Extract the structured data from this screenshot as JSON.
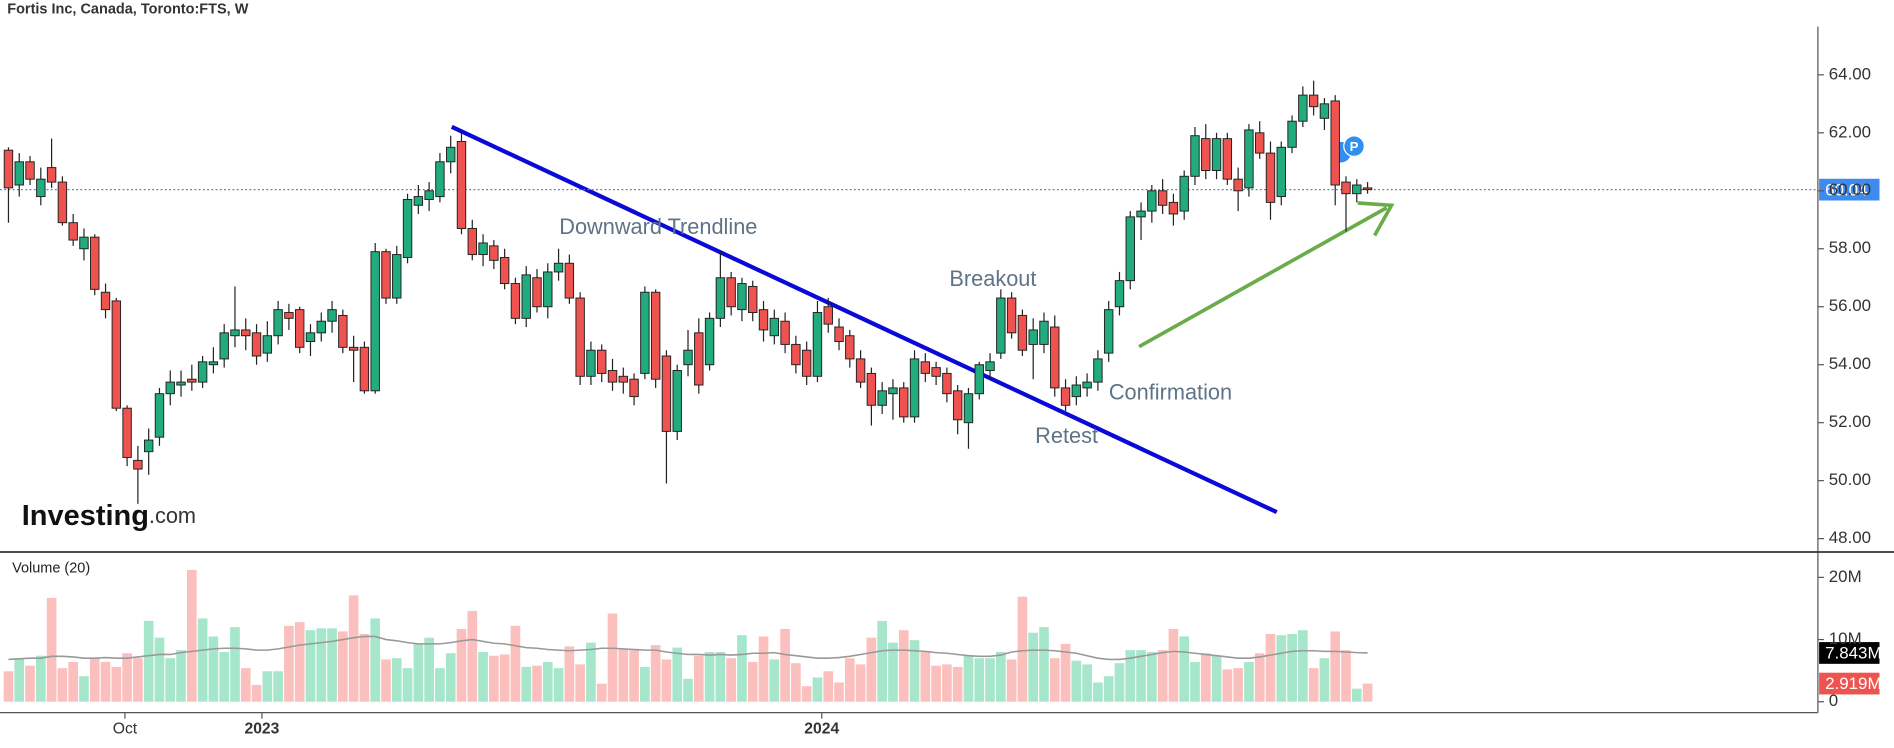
{
  "chart_data": {
    "type": "candlestick",
    "title": "Fortis Inc, Canada, Toronto:FTS, W",
    "ylim": [
      47.54,
      65.54
    ],
    "yticks": [
      {
        "value": 48,
        "label": "48.00"
      },
      {
        "value": 50,
        "label": "50.00"
      },
      {
        "value": 52,
        "label": "52.00"
      },
      {
        "value": 54,
        "label": "54.00"
      },
      {
        "value": 56,
        "label": "56.00"
      },
      {
        "value": 58,
        "label": "58.00"
      },
      {
        "value": 60,
        "label": "60.00"
      },
      {
        "value": 62,
        "label": "62.00"
      },
      {
        "value": 64,
        "label": "64.00"
      }
    ],
    "xticks": [
      {
        "value": 10.8,
        "label": "Oct"
      },
      {
        "value": 23.5,
        "label": "2023"
      },
      {
        "value": 75.4,
        "label": "2024"
      }
    ],
    "up_color": "#22ab7c",
    "down_color": "#ef5350",
    "ohlc": [
      [
        61.4,
        61.5,
        58.9,
        60.1
      ],
      [
        60.2,
        61.3,
        59.8,
        61.0
      ],
      [
        61.0,
        61.2,
        60.2,
        60.4
      ],
      [
        59.8,
        60.8,
        59.5,
        60.4
      ],
      [
        60.8,
        61.8,
        60.1,
        60.3
      ],
      [
        60.3,
        60.5,
        58.8,
        58.9
      ],
      [
        58.9,
        59.2,
        58.1,
        58.3
      ],
      [
        58.0,
        58.7,
        57.6,
        58.4
      ],
      [
        58.4,
        58.5,
        56.4,
        56.6
      ],
      [
        56.5,
        56.8,
        55.6,
        55.9
      ],
      [
        56.2,
        56.3,
        52.4,
        52.5
      ],
      [
        52.5,
        52.6,
        50.5,
        50.8
      ],
      [
        50.7,
        51.2,
        49.2,
        50.4
      ],
      [
        51.0,
        51.8,
        50.2,
        51.4
      ],
      [
        51.5,
        53.2,
        51.2,
        53.0
      ],
      [
        53.0,
        53.8,
        52.6,
        53.4
      ],
      [
        53.3,
        53.8,
        52.9,
        53.4
      ],
      [
        53.5,
        54.0,
        53.1,
        53.4
      ],
      [
        53.4,
        54.3,
        53.2,
        54.1
      ],
      [
        54.0,
        54.6,
        53.7,
        54.1
      ],
      [
        54.2,
        55.4,
        53.9,
        55.1
      ],
      [
        55.0,
        56.7,
        54.6,
        55.2
      ],
      [
        55.2,
        55.6,
        54.5,
        55.0
      ],
      [
        55.1,
        55.4,
        54.0,
        54.3
      ],
      [
        54.4,
        55.5,
        54.1,
        55.0
      ],
      [
        55.0,
        56.2,
        54.7,
        55.9
      ],
      [
        55.8,
        56.1,
        55.2,
        55.6
      ],
      [
        55.9,
        56.0,
        54.4,
        54.6
      ],
      [
        54.8,
        55.4,
        54.3,
        55.1
      ],
      [
        55.1,
        55.8,
        54.8,
        55.5
      ],
      [
        55.5,
        56.2,
        55.1,
        55.9
      ],
      [
        55.7,
        55.9,
        54.4,
        54.6
      ],
      [
        54.6,
        55.0,
        53.4,
        54.5
      ],
      [
        54.6,
        54.8,
        53.0,
        53.1
      ],
      [
        53.1,
        58.2,
        53.0,
        57.9
      ],
      [
        57.9,
        58.0,
        56.1,
        56.3
      ],
      [
        56.3,
        58.1,
        56.1,
        57.8
      ],
      [
        57.7,
        59.9,
        57.5,
        59.7
      ],
      [
        59.5,
        60.2,
        59.2,
        59.8
      ],
      [
        59.7,
        60.3,
        59.3,
        60.0
      ],
      [
        59.8,
        61.3,
        59.6,
        61.0
      ],
      [
        61.0,
        61.9,
        60.6,
        61.5
      ],
      [
        61.7,
        62.1,
        58.5,
        58.7
      ],
      [
        58.7,
        59.0,
        57.6,
        57.8
      ],
      [
        57.8,
        58.5,
        57.4,
        58.2
      ],
      [
        58.1,
        58.3,
        57.3,
        57.6
      ],
      [
        57.7,
        58.0,
        56.6,
        56.8
      ],
      [
        56.8,
        57.0,
        55.4,
        55.6
      ],
      [
        55.6,
        57.4,
        55.3,
        57.1
      ],
      [
        57.0,
        57.3,
        55.8,
        56.0
      ],
      [
        56.0,
        57.5,
        55.6,
        57.2
      ],
      [
        57.2,
        58.0,
        56.9,
        57.5
      ],
      [
        57.5,
        57.8,
        56.1,
        56.3
      ],
      [
        56.3,
        56.5,
        53.3,
        53.6
      ],
      [
        53.6,
        54.8,
        53.3,
        54.5
      ],
      [
        54.5,
        54.7,
        53.4,
        53.7
      ],
      [
        53.8,
        54.2,
        53.1,
        53.4
      ],
      [
        53.6,
        53.9,
        53.0,
        53.4
      ],
      [
        53.5,
        53.7,
        52.6,
        52.9
      ],
      [
        53.7,
        56.7,
        53.5,
        56.5
      ],
      [
        56.5,
        56.6,
        53.2,
        53.5
      ],
      [
        54.3,
        54.5,
        49.9,
        51.7
      ],
      [
        51.7,
        54.0,
        51.4,
        53.8
      ],
      [
        54.0,
        55.2,
        53.6,
        54.5
      ],
      [
        55.1,
        55.6,
        53.0,
        53.3
      ],
      [
        54.0,
        55.8,
        53.8,
        55.6
      ],
      [
        55.6,
        57.9,
        55.3,
        57.0
      ],
      [
        57.0,
        57.2,
        55.7,
        56.0
      ],
      [
        55.9,
        57.0,
        55.5,
        56.8
      ],
      [
        56.7,
        56.9,
        55.5,
        55.8
      ],
      [
        55.9,
        56.2,
        54.8,
        55.2
      ],
      [
        55.0,
        55.9,
        54.7,
        55.6
      ],
      [
        55.5,
        55.8,
        54.4,
        54.7
      ],
      [
        54.7,
        55.0,
        53.7,
        54.0
      ],
      [
        54.5,
        54.8,
        53.3,
        53.6
      ],
      [
        53.6,
        56.2,
        53.4,
        55.8
      ],
      [
        56.0,
        56.3,
        55.1,
        55.4
      ],
      [
        55.3,
        55.6,
        54.5,
        54.8
      ],
      [
        55.0,
        55.2,
        53.9,
        54.2
      ],
      [
        54.2,
        54.5,
        53.2,
        53.4
      ],
      [
        53.7,
        53.9,
        51.9,
        52.6
      ],
      [
        52.6,
        53.4,
        52.3,
        53.1
      ],
      [
        53.0,
        53.5,
        52.1,
        53.2
      ],
      [
        53.2,
        53.4,
        52.0,
        52.2
      ],
      [
        52.2,
        54.5,
        52.0,
        54.2
      ],
      [
        54.1,
        54.4,
        53.4,
        53.7
      ],
      [
        53.9,
        54.1,
        53.3,
        53.6
      ],
      [
        53.7,
        53.9,
        52.7,
        53.0
      ],
      [
        53.1,
        53.3,
        51.6,
        52.1
      ],
      [
        52.0,
        53.2,
        51.1,
        53.0
      ],
      [
        53.0,
        54.1,
        52.8,
        54.0
      ],
      [
        53.8,
        54.4,
        53.5,
        54.1
      ],
      [
        54.4,
        56.6,
        54.2,
        56.3
      ],
      [
        56.3,
        56.5,
        54.9,
        55.1
      ],
      [
        55.7,
        55.9,
        54.3,
        54.5
      ],
      [
        54.7,
        55.6,
        53.5,
        55.2
      ],
      [
        54.7,
        55.8,
        54.4,
        55.5
      ],
      [
        55.3,
        55.7,
        52.9,
        53.2
      ],
      [
        53.2,
        53.5,
        52.4,
        52.6
      ],
      [
        52.9,
        53.6,
        52.6,
        53.3
      ],
      [
        53.2,
        53.7,
        52.9,
        53.4
      ],
      [
        53.4,
        54.5,
        53.1,
        54.2
      ],
      [
        54.4,
        56.2,
        54.1,
        55.9
      ],
      [
        56.0,
        57.2,
        55.7,
        56.9
      ],
      [
        56.9,
        59.3,
        56.6,
        59.1
      ],
      [
        59.1,
        59.6,
        58.3,
        59.3
      ],
      [
        59.3,
        60.2,
        58.9,
        60.0
      ],
      [
        60.0,
        60.4,
        59.2,
        59.5
      ],
      [
        59.6,
        59.9,
        58.8,
        59.2
      ],
      [
        59.3,
        60.7,
        59.0,
        60.5
      ],
      [
        60.5,
        62.2,
        60.2,
        61.9
      ],
      [
        61.8,
        62.3,
        60.4,
        60.7
      ],
      [
        60.7,
        62.0,
        60.4,
        61.8
      ],
      [
        61.8,
        62.0,
        60.2,
        60.4
      ],
      [
        60.4,
        60.8,
        59.3,
        60.0
      ],
      [
        60.1,
        62.3,
        59.8,
        62.1
      ],
      [
        62.0,
        62.4,
        61.1,
        61.3
      ],
      [
        61.3,
        61.7,
        59.0,
        59.6
      ],
      [
        59.8,
        61.7,
        59.5,
        61.5
      ],
      [
        61.5,
        62.6,
        61.3,
        62.4
      ],
      [
        62.4,
        63.6,
        62.2,
        63.3
      ],
      [
        63.3,
        63.8,
        62.6,
        62.9
      ],
      [
        62.5,
        63.2,
        62.1,
        63.0
      ],
      [
        63.1,
        63.3,
        59.5,
        60.2
      ],
      [
        60.3,
        60.5,
        58.6,
        59.9
      ],
      [
        59.9,
        60.4,
        59.6,
        60.2
      ],
      [
        60.1,
        60.3,
        59.9,
        60.04
      ]
    ],
    "last_price": 60.04,
    "last_price_color": "#3d8bef",
    "volume_title": "Volume (20)",
    "volume_ylim": [
      -1.75,
      23.5
    ],
    "volume_yticks": [
      {
        "value": 0,
        "label": "0"
      },
      {
        "value": 10,
        "label": "10M"
      },
      {
        "value": 20,
        "label": "20M"
      }
    ],
    "volume_up_color": "#a6e6cb",
    "volume_down_color": "#fbc0bd",
    "volume": [
      4.9,
      7.0,
      5.8,
      7.4,
      16.7,
      5.4,
      6.4,
      4.1,
      7.0,
      6.4,
      5.6,
      7.8,
      7.0,
      13.0,
      10.3,
      7.0,
      8.3,
      21.2,
      13.4,
      10.5,
      8.0,
      12.0,
      5.4,
      2.7,
      4.9,
      4.9,
      12.2,
      12.8,
      11.5,
      11.8,
      11.8,
      11.3,
      17.1,
      10.9,
      13.4,
      6.8,
      7.0,
      5.4,
      9.3,
      10.3,
      5.4,
      7.8,
      11.7,
      14.6,
      8.0,
      7.4,
      7.6,
      12.2,
      5.6,
      5.8,
      6.4,
      5.4,
      8.9,
      6.0,
      9.5,
      2.9,
      14.2,
      8.5,
      8.5,
      5.6,
      9.1,
      6.8,
      8.7,
      3.7,
      7.4,
      8.0,
      8.0,
      7.0,
      10.7,
      6.4,
      10.5,
      6.8,
      11.7,
      6.2,
      2.5,
      3.9,
      4.9,
      3.1,
      7.0,
      6.0,
      10.3,
      13.0,
      9.5,
      11.5,
      9.9,
      8.0,
      5.8,
      6.0,
      5.6,
      7.4,
      7.0,
      7.0,
      8.0,
      6.8,
      16.9,
      11.1,
      12.0,
      7.0,
      9.3,
      6.6,
      6.0,
      3.1,
      4.1,
      6.2,
      8.3,
      8.3,
      8.0,
      8.3,
      11.7,
      10.5,
      6.4,
      7.8,
      7.4,
      5.2,
      5.4,
      6.4,
      7.8,
      10.9,
      10.7,
      10.9,
      11.5,
      5.4,
      7.0,
      11.3,
      8.3,
      2.1,
      2.919
    ],
    "volume_last_label": "2.919M",
    "volume_ma_color": "#999999",
    "volume_ma": [
      6.8,
      6.9,
      7.0,
      7.0,
      7.3,
      7.3,
      7.2,
      7.0,
      7.0,
      7.1,
      7.0,
      7.0,
      7.2,
      7.4,
      7.6,
      7.6,
      7.9,
      8.1,
      8.3,
      8.5,
      8.6,
      8.6,
      8.5,
      8.3,
      8.3,
      8.5,
      8.8,
      9.1,
      9.3,
      9.5,
      9.7,
      10.0,
      10.3,
      10.5,
      10.5,
      10.0,
      9.8,
      9.5,
      9.3,
      9.3,
      9.3,
      9.5,
      9.8,
      10.0,
      9.7,
      9.4,
      9.3,
      9.0,
      8.7,
      8.6,
      8.4,
      8.3,
      8.2,
      8.3,
      8.4,
      8.6,
      8.6,
      8.5,
      8.4,
      8.3,
      8.3,
      8.0,
      7.8,
      7.6,
      7.6,
      7.5,
      7.6,
      7.5,
      7.6,
      7.8,
      7.8,
      7.9,
      7.6,
      7.4,
      7.2,
      7.0,
      7.0,
      7.1,
      7.3,
      7.6,
      7.9,
      8.2,
      8.3,
      8.3,
      8.2,
      8.1,
      7.9,
      7.8,
      7.6,
      7.4,
      7.3,
      7.3,
      7.5,
      8.0,
      8.2,
      8.3,
      8.3,
      8.2,
      8.0,
      7.8,
      7.4,
      7.0,
      6.8,
      6.8,
      7.0,
      7.3,
      7.6,
      7.9,
      8.1,
      8.0,
      7.8,
      7.6,
      7.4,
      7.2,
      7.0,
      7.0,
      7.2,
      7.5,
      7.8,
      8.1,
      8.2,
      8.2,
      8.1,
      8.1,
      8.0,
      7.9,
      7.843
    ],
    "volume_ma_last_label": "7.843M",
    "annotations": [
      "Downward Trendline",
      "Breakout",
      "Retest",
      "Confirmation"
    ],
    "events": [
      "I",
      "P"
    ],
    "logo": {
      "main": "Investing",
      "suffix": ".com"
    }
  }
}
